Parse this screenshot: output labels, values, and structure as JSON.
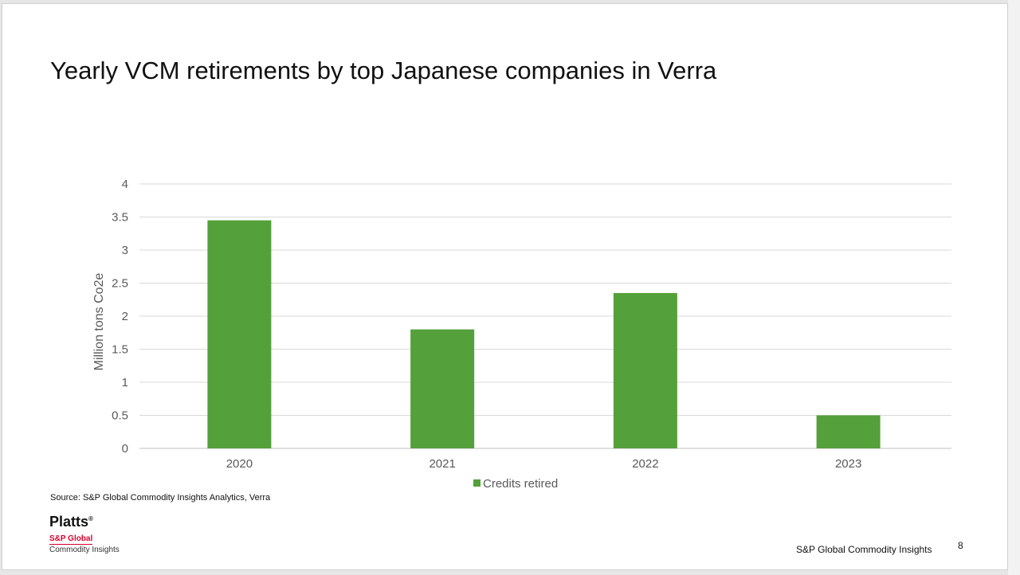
{
  "slide": {
    "title": "Yearly VCM retirements by top Japanese companies in Verra",
    "source": "Source: S&P Global Commodity Insights Analytics, Verra",
    "logo": {
      "brand": "Platts",
      "mark": "®",
      "line1": "S&P Global",
      "line2": "Commodity Insights"
    },
    "footer": "S&P Global Commodity Insights",
    "page_number": "8"
  },
  "colors": {
    "bar": "#54a03a",
    "grid": "#d9d9d9",
    "axis_text": "#595959",
    "logo_red": "#d6002a"
  },
  "chart_data": {
    "type": "bar",
    "title": "",
    "ylabel": "Million tons Co2e",
    "xlabel": "",
    "categories": [
      "2020",
      "2021",
      "2022",
      "2023"
    ],
    "series": [
      {
        "name": "Credits retired",
        "values": [
          3.45,
          1.8,
          2.35,
          0.5
        ]
      }
    ],
    "ylim": [
      0,
      4
    ],
    "yticks": [
      "0",
      "0.5",
      "1",
      "1.5",
      "2",
      "2.5",
      "3",
      "3.5",
      "4"
    ],
    "grid": true,
    "legend_position": "bottom"
  }
}
